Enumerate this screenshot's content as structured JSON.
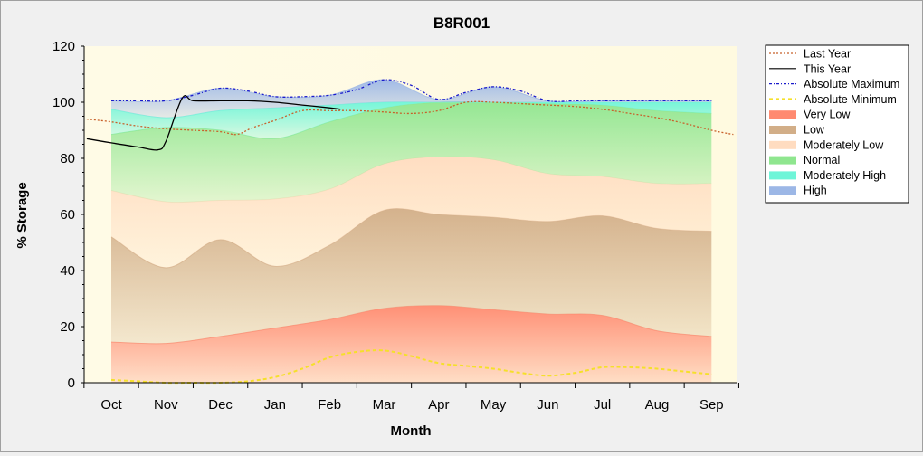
{
  "chart_data": {
    "type": "area",
    "title": "B8R001",
    "xlabel": "Month",
    "ylabel": "% Storage",
    "ylim": [
      0,
      120
    ],
    "yticks": [
      0,
      20,
      40,
      60,
      80,
      100,
      120
    ],
    "categories": [
      "Oct",
      "Nov",
      "Dec",
      "Jan",
      "Feb",
      "Mar",
      "Apr",
      "May",
      "Jun",
      "Jul",
      "Aug",
      "Sep"
    ],
    "grid": false,
    "legend_position": "right",
    "bands": [
      {
        "name": "Very Low",
        "color": "#ff8a70",
        "lower": [
          0,
          0,
          0,
          0,
          0,
          0,
          0,
          0,
          0,
          0,
          0,
          0
        ],
        "upper": [
          14.5,
          14,
          16.5,
          19.5,
          22.5,
          26.5,
          27.5,
          26,
          24.5,
          24,
          18.5,
          16.5
        ]
      },
      {
        "name": "Low",
        "color": "#d2ae88",
        "upper": [
          52,
          41,
          51,
          41.5,
          49,
          61.5,
          60,
          59,
          57.5,
          59.5,
          55,
          54
        ]
      },
      {
        "name": "Moderately Low",
        "color": "#ffdcc0",
        "upper": [
          68.5,
          64.5,
          65,
          65.5,
          69,
          78,
          80.5,
          79.5,
          74.5,
          73.5,
          71,
          71
        ]
      },
      {
        "name": "Normal",
        "color": "#8fe68f",
        "upper": [
          88.5,
          91,
          90,
          87,
          93,
          98,
          100,
          100,
          99.5,
          99,
          97,
          96
        ]
      },
      {
        "name": "Moderately High",
        "color": "#6ff5d8",
        "upper": [
          97.5,
          94.5,
          97,
          98,
          99,
          100,
          100,
          100,
          100,
          100,
          100,
          100
        ]
      },
      {
        "name": "High",
        "color": "#9cb7e6",
        "upper": [
          100.5,
          100.5,
          105,
          102,
          102.5,
          108,
          101,
          105.5,
          100.5,
          100.5,
          100.5,
          100.5
        ]
      }
    ],
    "series": [
      {
        "name": "Last Year",
        "color": "#c8602a",
        "style": "dotted",
        "x": [
          -0.45,
          0,
          0.5,
          1,
          1.5,
          2,
          2.3,
          2.6,
          3,
          3.5,
          4,
          4.5,
          5,
          5.5,
          6,
          6.5,
          7,
          7.5,
          8,
          8.5,
          9,
          9.5,
          10,
          10.5,
          11,
          11.4
        ],
        "values": [
          94,
          93,
          91.5,
          90.5,
          90,
          89.5,
          88.5,
          91,
          93.5,
          97,
          97,
          97,
          96.5,
          96,
          97,
          100,
          100,
          99.5,
          99,
          98.5,
          97.5,
          96,
          94.5,
          92.5,
          90,
          88.5
        ]
      },
      {
        "name": "This Year",
        "color": "#000000",
        "style": "solid",
        "x": [
          -0.45,
          0,
          0.5,
          0.85,
          1,
          1.3,
          1.5,
          2,
          2.5,
          3,
          3.5,
          4,
          4.2
        ],
        "values": [
          87,
          85.5,
          84,
          83,
          86,
          101.5,
          100.5,
          100.5,
          100.5,
          100,
          99,
          98,
          97.5
        ]
      },
      {
        "name": "Absolute Maximum",
        "color": "#1a1acc",
        "style": "dashdot",
        "x": [
          0,
          0.5,
          1,
          1.5,
          2,
          2.5,
          3,
          3.5,
          4,
          4.5,
          5,
          5.5,
          6,
          6.5,
          7,
          7.5,
          8,
          8.5,
          9,
          9.5,
          10,
          10.5,
          11
        ],
        "values": [
          100.5,
          100.5,
          100.5,
          102.5,
          105,
          104,
          102,
          102,
          102.5,
          104.5,
          108,
          106,
          101,
          103.5,
          105.5,
          104,
          100.5,
          100.5,
          100.5,
          100.5,
          100.5,
          100.5,
          100.5
        ]
      },
      {
        "name": "Absolute Minimum",
        "color": "#f5e02a",
        "style": "dashed",
        "x": [
          0,
          0.5,
          1,
          1.5,
          2,
          2.5,
          3,
          3.5,
          4,
          4.5,
          5,
          5.5,
          6,
          6.5,
          7,
          7.5,
          8,
          8.5,
          9,
          9.5,
          10,
          10.5,
          11
        ],
        "values": [
          1,
          0.5,
          0,
          0,
          0,
          0.5,
          2,
          5,
          9,
          11,
          11.5,
          9.5,
          7,
          6,
          5,
          3.5,
          2.5,
          3.5,
          5.5,
          5.5,
          5,
          4,
          3
        ]
      }
    ]
  }
}
